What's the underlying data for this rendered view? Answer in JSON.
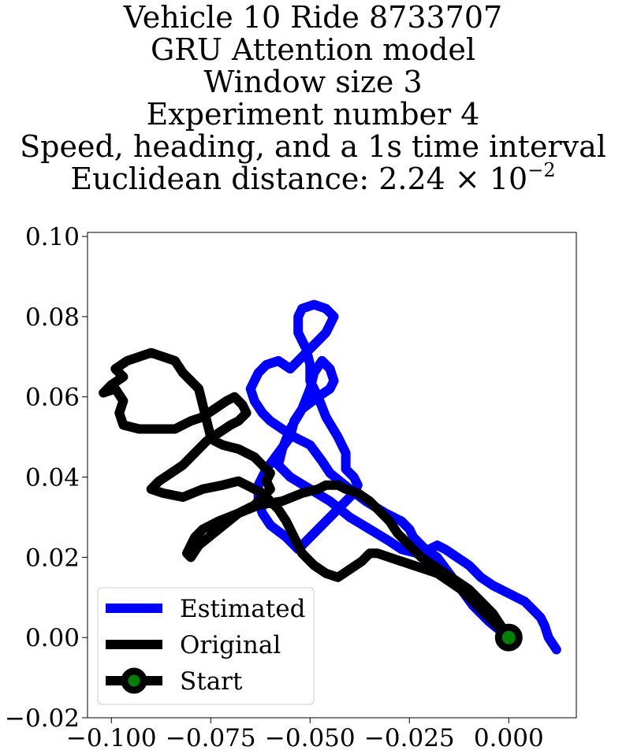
{
  "title": {
    "line1": "Vehicle 10 Ride 8733707",
    "line2": "GRU Attention model",
    "line3": "Window size 3",
    "line4": "Experiment number 4",
    "line5": "Speed, heading, and a 1s time interval",
    "line6_prefix": "Euclidean distance: 2.24 × 10",
    "line6_exponent": "−2"
  },
  "chart_data": {
    "type": "line",
    "title": "Vehicle 10 Ride 8733707 / GRU Attention model / Window size 3 / Experiment number 4 / Speed, heading, and a 1s time interval / Euclidean distance: 2.24 × 10⁻²",
    "xlabel": "",
    "ylabel": "",
    "xlim": [
      -0.106,
      0.017
    ],
    "ylim": [
      -0.02,
      0.101
    ],
    "grid": false,
    "legend_position": "lower-left",
    "x_ticks": [
      "−0.100",
      "−0.075",
      "−0.050",
      "−0.025",
      "0.000"
    ],
    "x_tick_values": [
      -0.1,
      -0.075,
      -0.05,
      -0.025,
      0.0
    ],
    "y_ticks": [
      "−0.02",
      "0.00",
      "0.02",
      "0.04",
      "0.06",
      "0.08",
      "0.10"
    ],
    "y_tick_values": [
      -0.02,
      0.0,
      0.02,
      0.04,
      0.06,
      0.08,
      0.1
    ],
    "series": [
      {
        "name": "Estimated",
        "color": "#0000ff",
        "x": [
          0.0,
          -0.005,
          -0.009,
          -0.012,
          -0.015,
          -0.018,
          -0.021,
          -0.024,
          -0.025,
          -0.027,
          -0.031,
          -0.036,
          -0.04,
          -0.045,
          -0.047,
          -0.05,
          -0.054,
          -0.057,
          -0.06,
          -0.062,
          -0.064,
          -0.065,
          -0.063,
          -0.061,
          -0.058,
          -0.055,
          -0.053,
          -0.05,
          -0.048,
          -0.046,
          -0.045,
          -0.044,
          -0.046,
          -0.049,
          -0.052,
          -0.053,
          -0.053,
          -0.051,
          -0.05,
          -0.05,
          -0.048,
          -0.046,
          -0.043,
          -0.041,
          -0.041,
          -0.039,
          -0.038,
          -0.039,
          -0.043,
          -0.047,
          -0.05,
          -0.053,
          -0.056,
          -0.06,
          -0.062,
          -0.063,
          -0.063,
          -0.061,
          -0.058,
          -0.055,
          -0.054,
          -0.052,
          -0.048,
          -0.045,
          -0.044,
          -0.045,
          -0.047,
          -0.049,
          -0.05,
          -0.052,
          -0.055,
          -0.057,
          -0.058,
          -0.055,
          -0.05,
          -0.045,
          -0.04,
          -0.035,
          -0.03,
          -0.027,
          -0.023,
          -0.02,
          -0.018,
          -0.016,
          -0.013,
          -0.01,
          -0.007,
          -0.004,
          -0.002,
          0.0,
          0.002,
          0.004,
          0.006,
          0.008,
          0.009,
          0.01,
          0.012
        ],
        "y": [
          0.0,
          0.004,
          0.008,
          0.012,
          0.016,
          0.02,
          0.022,
          0.025,
          0.027,
          0.029,
          0.031,
          0.034,
          0.037,
          0.041,
          0.044,
          0.048,
          0.05,
          0.052,
          0.054,
          0.056,
          0.059,
          0.062,
          0.066,
          0.068,
          0.069,
          0.067,
          0.069,
          0.072,
          0.074,
          0.076,
          0.078,
          0.08,
          0.082,
          0.083,
          0.082,
          0.08,
          0.076,
          0.072,
          0.068,
          0.064,
          0.06,
          0.055,
          0.05,
          0.046,
          0.042,
          0.04,
          0.038,
          0.036,
          0.032,
          0.028,
          0.025,
          0.022,
          0.025,
          0.028,
          0.031,
          0.034,
          0.038,
          0.042,
          0.046,
          0.05,
          0.054,
          0.057,
          0.06,
          0.062,
          0.064,
          0.067,
          0.069,
          0.066,
          0.062,
          0.057,
          0.052,
          0.047,
          0.043,
          0.04,
          0.037,
          0.034,
          0.03,
          0.027,
          0.024,
          0.022,
          0.021,
          0.022,
          0.023,
          0.022,
          0.02,
          0.018,
          0.015,
          0.013,
          0.012,
          0.011,
          0.01,
          0.009,
          0.007,
          0.005,
          0.003,
          0.0,
          -0.003
        ]
      },
      {
        "name": "Original",
        "color": "#000000",
        "x": [
          0.0,
          -0.003,
          -0.006,
          -0.009,
          -0.012,
          -0.015,
          -0.018,
          -0.021,
          -0.024,
          -0.027,
          -0.03,
          -0.033,
          -0.035,
          -0.037,
          -0.04,
          -0.043,
          -0.046,
          -0.049,
          -0.052,
          -0.054,
          -0.056,
          -0.058,
          -0.06,
          -0.062,
          -0.064,
          -0.066,
          -0.068,
          -0.072,
          -0.077,
          -0.082,
          -0.087,
          -0.09,
          -0.088,
          -0.085,
          -0.082,
          -0.08,
          -0.078,
          -0.076,
          -0.073,
          -0.07,
          -0.068,
          -0.066,
          -0.067,
          -0.069,
          -0.071,
          -0.074,
          -0.077,
          -0.08,
          -0.084,
          -0.088,
          -0.093,
          -0.097,
          -0.098,
          -0.097,
          -0.099,
          -0.102,
          -0.1,
          -0.097,
          -0.099,
          -0.096,
          -0.093,
          -0.09,
          -0.087,
          -0.084,
          -0.082,
          -0.08,
          -0.078,
          -0.077,
          -0.076,
          -0.075,
          -0.074,
          -0.072,
          -0.068,
          -0.064,
          -0.062,
          -0.06,
          -0.061,
          -0.06,
          -0.062,
          -0.064,
          -0.068,
          -0.073,
          -0.078,
          -0.08,
          -0.081,
          -0.08,
          -0.079,
          -0.077,
          -0.073,
          -0.068,
          -0.063,
          -0.057,
          -0.052,
          -0.048,
          -0.046,
          -0.043,
          -0.041,
          -0.038,
          -0.035,
          -0.033,
          -0.03,
          -0.028,
          -0.026,
          -0.024,
          -0.022,
          -0.019,
          -0.016,
          -0.013,
          -0.01,
          -0.007,
          -0.004,
          -0.002,
          0.0
        ],
        "y": [
          0.0,
          0.003,
          0.006,
          0.009,
          0.012,
          0.014,
          0.016,
          0.017,
          0.018,
          0.019,
          0.02,
          0.021,
          0.021,
          0.019,
          0.017,
          0.015,
          0.016,
          0.018,
          0.021,
          0.025,
          0.029,
          0.032,
          0.034,
          0.036,
          0.037,
          0.038,
          0.039,
          0.038,
          0.037,
          0.035,
          0.036,
          0.037,
          0.039,
          0.041,
          0.043,
          0.045,
          0.047,
          0.049,
          0.051,
          0.053,
          0.054,
          0.056,
          0.058,
          0.06,
          0.059,
          0.057,
          0.055,
          0.054,
          0.052,
          0.052,
          0.052,
          0.053,
          0.056,
          0.059,
          0.062,
          0.061,
          0.063,
          0.065,
          0.067,
          0.069,
          0.07,
          0.071,
          0.07,
          0.069,
          0.066,
          0.064,
          0.062,
          0.058,
          0.054,
          0.05,
          0.049,
          0.048,
          0.047,
          0.045,
          0.043,
          0.041,
          0.039,
          0.037,
          0.035,
          0.033,
          0.031,
          0.027,
          0.023,
          0.02,
          0.021,
          0.023,
          0.025,
          0.027,
          0.029,
          0.031,
          0.033,
          0.034,
          0.036,
          0.037,
          0.038,
          0.038,
          0.037,
          0.036,
          0.034,
          0.032,
          0.029,
          0.026,
          0.024,
          0.022,
          0.02,
          0.018,
          0.016,
          0.014,
          0.012,
          0.009,
          0.006,
          0.003,
          0.0
        ]
      }
    ],
    "markers": [
      {
        "name": "Start",
        "x": 0.0,
        "y": 0.0,
        "edge_color": "#000000",
        "face_color": "#008000"
      }
    ],
    "legend": [
      {
        "label": "Estimated",
        "kind": "line",
        "color": "#0000ff"
      },
      {
        "label": "Original",
        "kind": "line",
        "color": "#000000"
      },
      {
        "label": "Start",
        "kind": "line-marker",
        "color": "#000000",
        "marker_color": "#008000"
      }
    ]
  }
}
